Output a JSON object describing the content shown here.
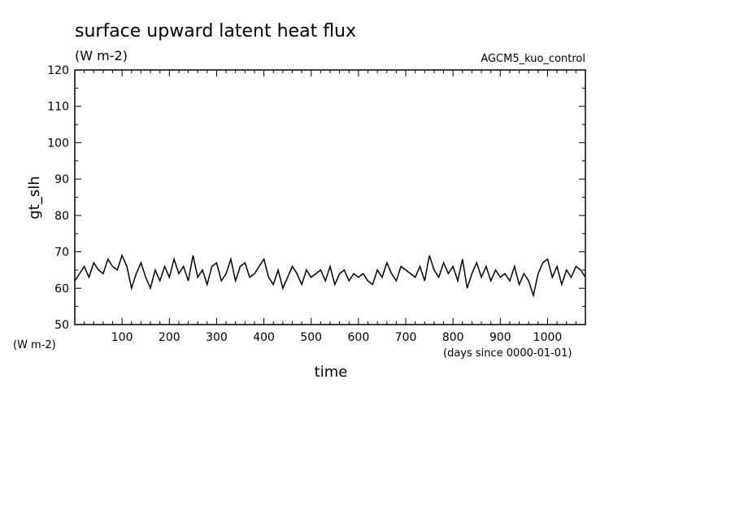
{
  "chart_data": {
    "type": "line",
    "title": "surface upward latent heat flux",
    "subtitle": "(W m-2)",
    "experiment": "AGCM5_kuo_control",
    "ylabel": "gt_slh",
    "y_units": "(W m-2)",
    "xlabel": "time",
    "x_units": "(days since 0000-01-01)",
    "xlim": [
      0,
      1080
    ],
    "ylim": [
      50,
      120
    ],
    "xticks": [
      100,
      200,
      300,
      400,
      500,
      600,
      700,
      800,
      900,
      1000
    ],
    "yticks": [
      50,
      60,
      70,
      80,
      90,
      100,
      110,
      120
    ],
    "grid": false,
    "series": [
      {
        "x": [
          0,
          10,
          20,
          30,
          40,
          50,
          60,
          70,
          80,
          90,
          100,
          110,
          120,
          130,
          140,
          150,
          160,
          170,
          180,
          190,
          200,
          210,
          220,
          230,
          240,
          250,
          260,
          270,
          280,
          290,
          300,
          310,
          320,
          330,
          340,
          350,
          360,
          370,
          380,
          390,
          400,
          410,
          420,
          430,
          440,
          450,
          460,
          470,
          480,
          490,
          500,
          510,
          520,
          530,
          540,
          550,
          560,
          570,
          580,
          590,
          600,
          610,
          620,
          630,
          640,
          650,
          660,
          670,
          680,
          690,
          700,
          710,
          720,
          730,
          740,
          750,
          760,
          770,
          780,
          790,
          800,
          810,
          820,
          830,
          840,
          850,
          860,
          870,
          880,
          890,
          900,
          910,
          920,
          930,
          940,
          950,
          960,
          970,
          980,
          990,
          1000,
          1010,
          1020,
          1030,
          1040,
          1050,
          1060,
          1070,
          1080
        ],
        "values": [
          62,
          64,
          66,
          63,
          67,
          65,
          64,
          68,
          66,
          65,
          69,
          66,
          60,
          64,
          67,
          63,
          60,
          65,
          62,
          66,
          63,
          68,
          64,
          66,
          62,
          69,
          63,
          65,
          61,
          66,
          67,
          62,
          64,
          68,
          62,
          66,
          67,
          63,
          64,
          66,
          68,
          63,
          61,
          65,
          60,
          63,
          66,
          64,
          61,
          65,
          63,
          64,
          65,
          62,
          66,
          61,
          64,
          65,
          62,
          64,
          63,
          64,
          62,
          61,
          65,
          63,
          67,
          64,
          62,
          66,
          65,
          64,
          63,
          66,
          62,
          69,
          65,
          63,
          67,
          64,
          66,
          62,
          68,
          60,
          64,
          67,
          63,
          66,
          62,
          65,
          63,
          64,
          62,
          66,
          61,
          64,
          62,
          58,
          64,
          67,
          68,
          63,
          66,
          61,
          65,
          63,
          66,
          65,
          63
        ]
      }
    ]
  }
}
